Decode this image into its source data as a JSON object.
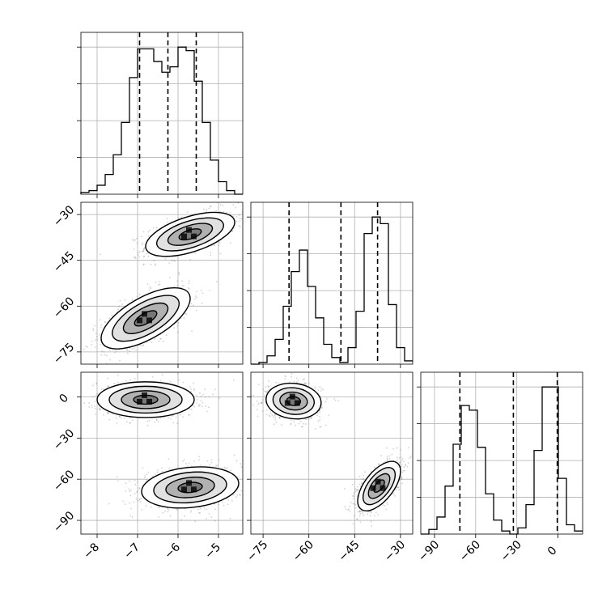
{
  "chart_data": {
    "type": "corner",
    "title": "",
    "variables": [
      "",
      "",
      ""
    ],
    "grid": true,
    "colors": {
      "line": "#000000",
      "grid": "#b0b0b0",
      "points": "#7f7f7f",
      "frame": "#000000"
    },
    "axes": [
      {
        "range": [
          -8.4,
          -4.4
        ],
        "ticks": [
          -8,
          -7,
          -6,
          -5
        ],
        "tick_labels": [
          "−8",
          "−7",
          "−6",
          "−5"
        ]
      },
      {
        "range": [
          -79,
          -26
        ],
        "ticks": [
          -75,
          -60,
          -45,
          -30
        ],
        "tick_labels": [
          "−75",
          "−60",
          "−45",
          "−30"
        ]
      },
      {
        "range": [
          -100,
          18
        ],
        "ticks": [
          -90,
          -60,
          -30,
          0
        ],
        "tick_labels": [
          "−90",
          "−60",
          "−30",
          "0"
        ]
      }
    ],
    "quantiles": [
      [
        -6.95,
        -6.25,
        -5.55
      ],
      [
        -66.5,
        -49.5,
        -37.5
      ],
      [
        -71.5,
        -32.5,
        -0.5
      ]
    ],
    "histograms": [
      {
        "bin_edges": [
          -8.4,
          -8.2,
          -8.0,
          -7.8,
          -7.6,
          -7.4,
          -7.2,
          -7.0,
          -6.8,
          -6.6,
          -6.4,
          -6.2,
          -6.0,
          -5.8,
          -5.6,
          -5.4,
          -5.2,
          -5.0,
          -4.8,
          -4.6,
          -4.4
        ],
        "counts": [
          1,
          2,
          5,
          11,
          22,
          40,
          65,
          81,
          81,
          74,
          68,
          71,
          82,
          80,
          63,
          40,
          19,
          7,
          2,
          0
        ]
      },
      {
        "bin_edges": [
          -79,
          -76.35,
          -73.7,
          -71.05,
          -68.4,
          -65.75,
          -63.1,
          -60.45,
          -57.8,
          -55.15,
          -52.5,
          -49.85,
          -47.2,
          -44.55,
          -41.9,
          -39.25,
          -36.6,
          -33.95,
          -31.3,
          -28.65,
          -26
        ],
        "counts": [
          0,
          1,
          5,
          15,
          35,
          56,
          69,
          47,
          28,
          12,
          4,
          1,
          10,
          32,
          79,
          89,
          85,
          36,
          10,
          2
        ]
      },
      {
        "bin_edges": [
          -100,
          -94.1,
          -88.2,
          -82.3,
          -76.4,
          -70.5,
          -64.6,
          -58.7,
          -52.8,
          -46.9,
          -41.0,
          -35.1,
          -29.2,
          -23.3,
          -17.4,
          -11.5,
          -5.6,
          0.3,
          6.2,
          12.1,
          18
        ],
        "counts": [
          0,
          3,
          11,
          31,
          58,
          83,
          80,
          56,
          26,
          9,
          2,
          0,
          4,
          19,
          54,
          95,
          95,
          36,
          6,
          2
        ]
      }
    ],
    "pairs": [
      {
        "row": 1,
        "col": 0,
        "components": [
          {
            "mean": [
              -5.7,
              -36.5
            ],
            "sd": [
              0.55,
              3.6
            ],
            "rho": 0.55,
            "weight": 0.5
          },
          {
            "mean": [
              -6.8,
              -64.0
            ],
            "sd": [
              0.55,
              5.0
            ],
            "rho": 0.65,
            "weight": 0.5
          }
        ],
        "contour_levels": [
          0.5,
          1.0,
          1.5,
          2.0
        ]
      },
      {
        "row": 2,
        "col": 0,
        "components": [
          {
            "mean": [
              -6.8,
              -2.0
            ],
            "sd": [
              0.6,
              6.5
            ],
            "rho": 0.0,
            "weight": 0.5
          },
          {
            "mean": [
              -5.7,
              -66.0
            ],
            "sd": [
              0.6,
              7.5
            ],
            "rho": 0.2,
            "weight": 0.5
          }
        ],
        "contour_levels": [
          0.5,
          1.0,
          1.5,
          2.0
        ]
      },
      {
        "row": 2,
        "col": 1,
        "components": [
          {
            "mean": [
              -65.0,
              -3.0
            ],
            "sd": [
              4.5,
              6.5
            ],
            "rho": -0.1,
            "weight": 0.5
          },
          {
            "mean": [
              -37.0,
              -65.0
            ],
            "sd": [
              3.5,
              9.0
            ],
            "rho": 0.6,
            "weight": 0.5
          }
        ],
        "contour_levels": [
          0.5,
          1.0,
          1.5,
          2.0
        ]
      }
    ]
  }
}
